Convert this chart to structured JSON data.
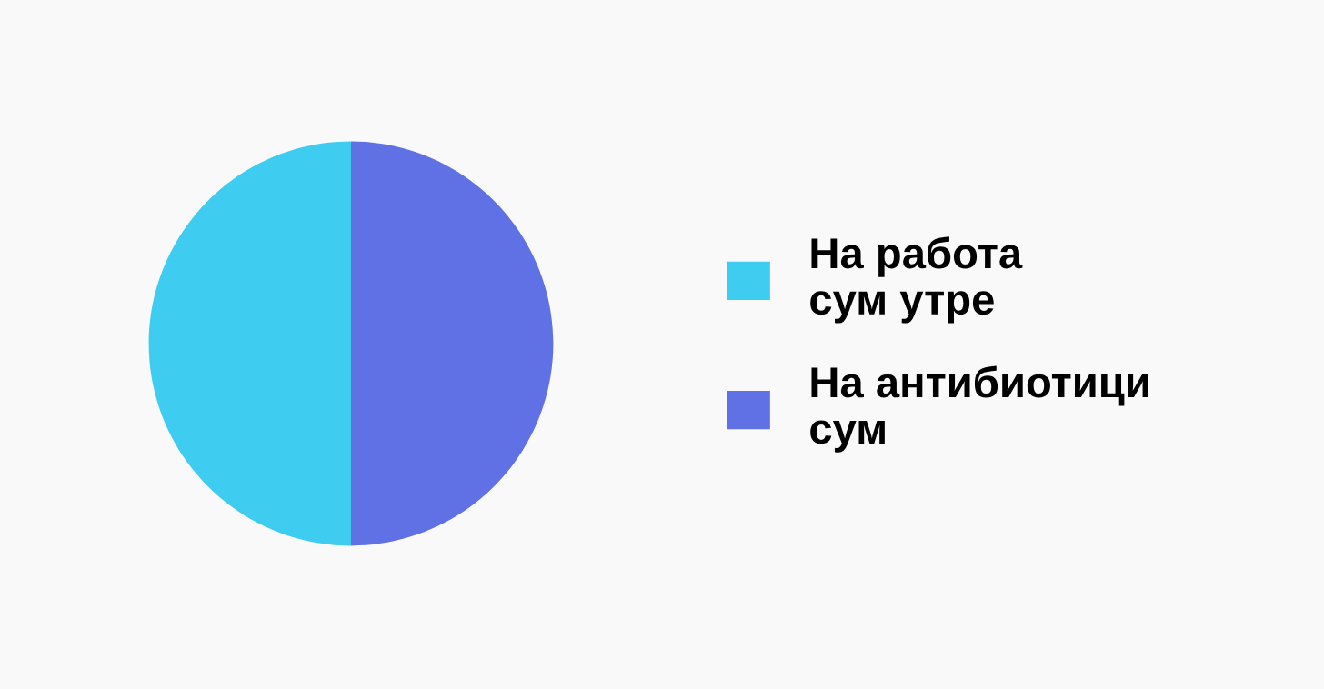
{
  "chart_data": {
    "type": "pie",
    "categories": [
      "На работа\nсум утре",
      "На антибиотици\nсум"
    ],
    "values": [
      50,
      50
    ],
    "colors": [
      "#3ecdf0",
      "#5f71e4"
    ],
    "legend": "right"
  }
}
